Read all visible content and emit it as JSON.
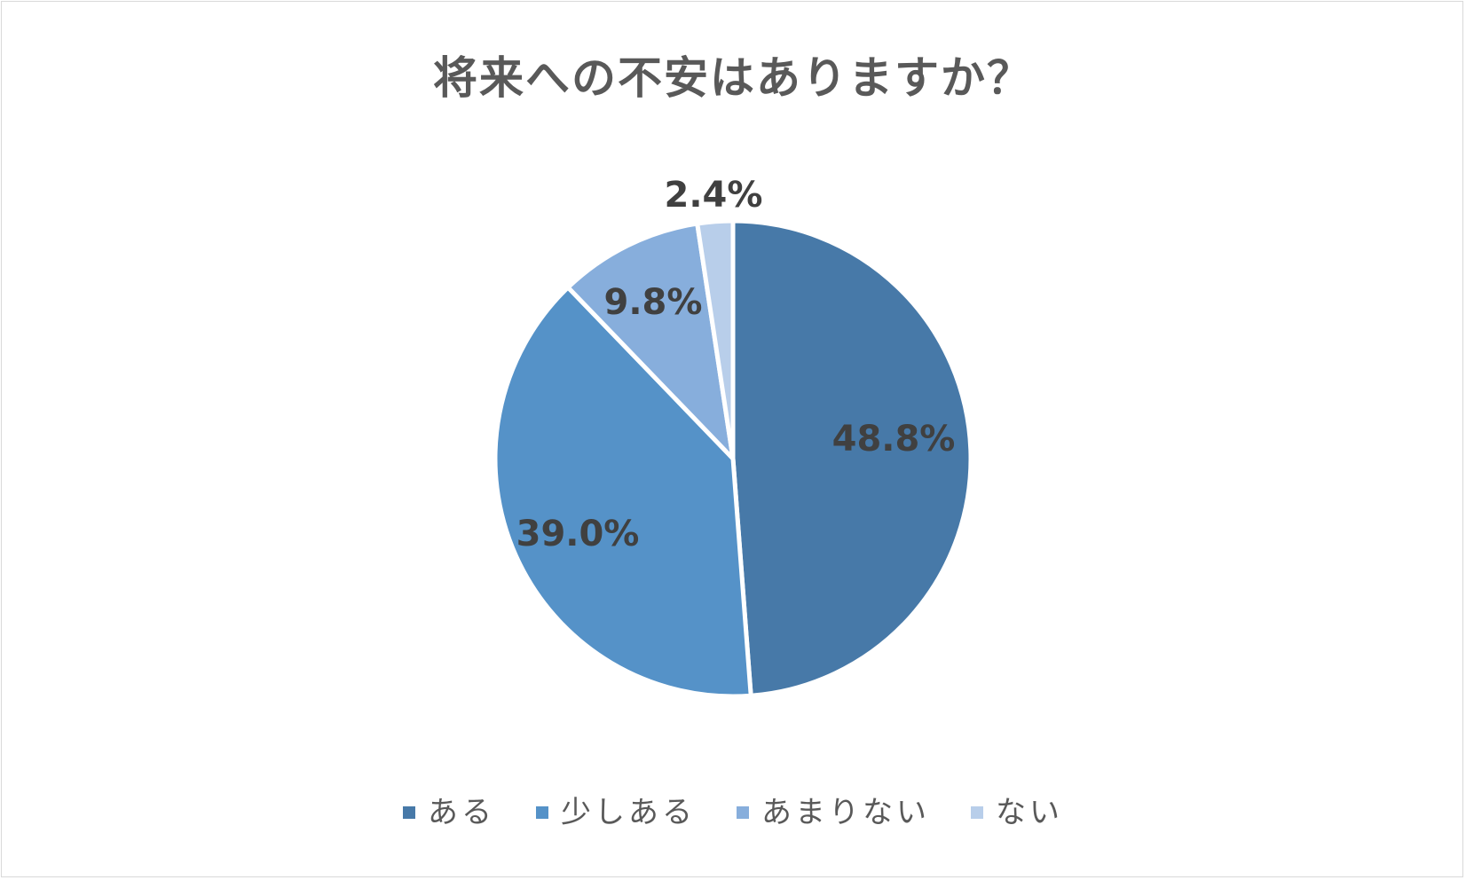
{
  "chart_data": {
    "type": "pie",
    "title": "将来への不安はありますか？",
    "categories": [
      "ある",
      "少しある",
      "あまりない",
      "ない"
    ],
    "values": [
      48.8,
      39.0,
      9.8,
      2.4
    ],
    "data_labels": [
      "48.8%",
      "39.0%",
      "9.8%",
      "2.4%"
    ],
    "colors": [
      "#4779A8",
      "#5592C8",
      "#87AEDC",
      "#B8CEEA"
    ],
    "legend_placement": "bottom",
    "start_angle_deg": 0,
    "direction": "clockwise"
  }
}
